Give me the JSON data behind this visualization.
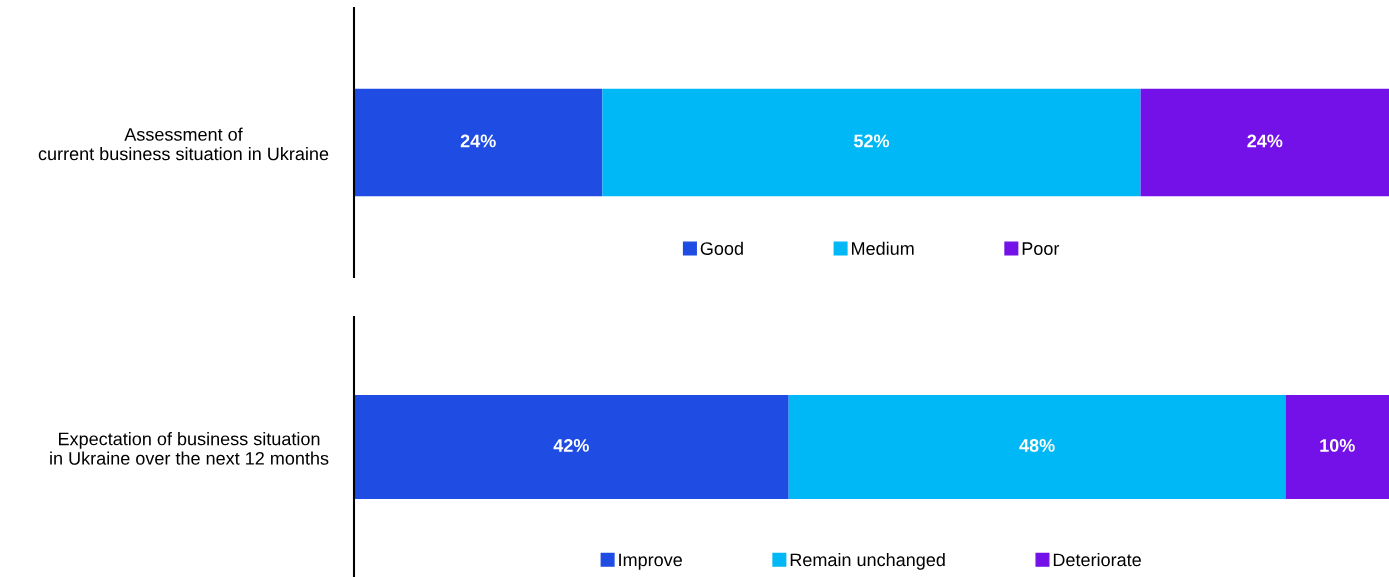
{
  "chart_data": [
    {
      "type": "bar",
      "orientation": "horizontal",
      "stacked": true,
      "categories": [
        "Assessment of\ncurrent business situation in Ukraine"
      ],
      "series": [
        {
          "name": "Good",
          "color": "#1f4ce3",
          "values": [
            24
          ],
          "value_labels": [
            "24%"
          ]
        },
        {
          "name": "Medium",
          "color": "#00b8f5",
          "values": [
            52
          ],
          "value_labels": [
            "52%"
          ]
        },
        {
          "name": "Poor",
          "color": "#7311e8",
          "values": [
            24
          ],
          "value_labels": [
            "24%"
          ]
        }
      ],
      "legend": "bottom",
      "grid": false,
      "tick_labels": "y"
    },
    {
      "type": "bar",
      "orientation": "horizontal",
      "stacked": true,
      "categories": [
        "Expectation of business situation\nin Ukraine over the next 12 months"
      ],
      "series": [
        {
          "name": "Improve",
          "color": "#1f4ce3",
          "values": [
            42
          ],
          "value_labels": [
            "42%"
          ]
        },
        {
          "name": "Remain unchanged",
          "color": "#00b8f5",
          "values": [
            48
          ],
          "value_labels": [
            "48%"
          ]
        },
        {
          "name": "Deteriorate",
          "color": "#7311e8",
          "values": [
            10
          ],
          "value_labels": [
            "10%"
          ]
        }
      ],
      "legend": "bottom",
      "grid": false,
      "tick_labels": "y"
    }
  ]
}
